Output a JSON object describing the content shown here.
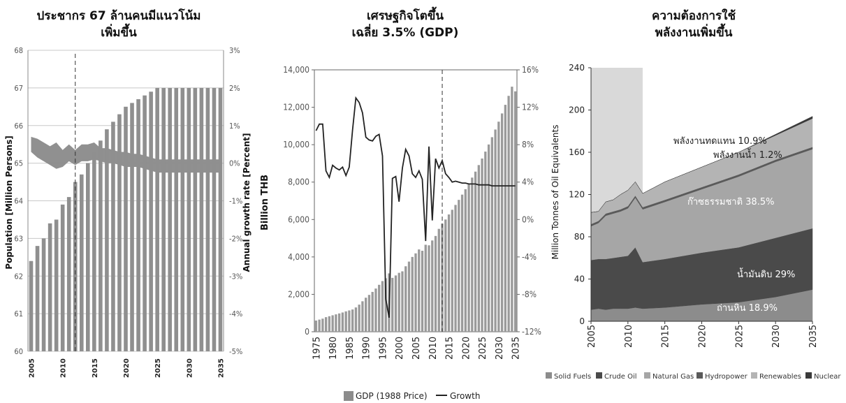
{
  "chart_data": [
    {
      "type": "bar",
      "title_lines": [
        "ประชากร 67 ล้านคนมีแนวโน้ม",
        "เพิ่มขึ้น"
      ],
      "ylabel": "Population [Million Persons]",
      "y2label": "Annual growth rate [Percent]",
      "ylim": [
        60,
        68
      ],
      "y2lim": [
        -5,
        3
      ],
      "yticks": [
        "60",
        "61",
        "62",
        "63",
        "64",
        "65",
        "66",
        "67",
        "68"
      ],
      "y2ticks": [
        "-5%",
        "-4%",
        "-3%",
        "-2%",
        "-1%",
        "0%",
        "1%",
        "2%",
        "3%"
      ],
      "xticks": [
        "2005",
        "2010",
        "2015",
        "2020",
        "2025",
        "2030",
        "2035"
      ],
      "grid": true,
      "projection_start": 2012,
      "series": [
        {
          "type": "bar",
          "x": [
            2005,
            2006,
            2007,
            2008,
            2009,
            2010,
            2011,
            2012,
            2013,
            2014,
            2015,
            2016,
            2017,
            2018,
            2019,
            2020,
            2021,
            2022,
            2023,
            2024,
            2025,
            2026,
            2027,
            2028,
            2029,
            2030,
            2031,
            2032,
            2033,
            2034,
            2035
          ],
          "values": [
            62.4,
            62.8,
            63.0,
            63.4,
            63.5,
            63.9,
            64.1,
            64.5,
            64.7,
            65.0,
            65.3,
            65.6,
            65.9,
            66.1,
            66.3,
            66.5,
            66.6,
            66.7,
            66.8,
            66.9,
            67.0,
            67.0,
            67.0,
            67.0,
            67.0,
            67.0,
            67.0,
            67.0,
            67.0,
            67.0,
            67.0
          ]
        },
        {
          "type": "band",
          "x": [
            2005,
            2006,
            2007,
            2008,
            2009,
            2010,
            2011,
            2012,
            2013,
            2014,
            2015,
            2016,
            2017,
            2018,
            2019,
            2020,
            2021,
            2022,
            2023,
            2024,
            2025,
            2026,
            2027,
            2028,
            2029,
            2030,
            2031,
            2032,
            2033,
            2034,
            2035
          ],
          "upper": [
            0.7,
            0.65,
            0.55,
            0.45,
            0.55,
            0.35,
            0.5,
            0.35,
            0.5,
            0.5,
            0.55,
            0.4,
            0.4,
            0.35,
            0.3,
            0.3,
            0.25,
            0.25,
            0.2,
            0.15,
            0.1,
            0.1,
            0.1,
            0.1,
            0.1,
            0.1,
            0.1,
            0.1,
            0.1,
            0.1,
            0.1
          ],
          "lower": [
            0.3,
            0.15,
            0.05,
            -0.05,
            -0.15,
            -0.1,
            0.05,
            -0.05,
            0.05,
            0.05,
            0.1,
            0.05,
            0.0,
            0.0,
            -0.05,
            -0.1,
            -0.1,
            -0.1,
            -0.15,
            -0.2,
            -0.25,
            -0.25,
            -0.25,
            -0.25,
            -0.25,
            -0.25,
            -0.25,
            -0.25,
            -0.25,
            -0.25,
            -0.25
          ]
        }
      ]
    },
    {
      "type": "bar",
      "title_lines": [
        "เศรษฐกิจโตขึ้น",
        "เฉลี่ย 3.5% (GDP)"
      ],
      "ylabel": "Billion THB",
      "ylim": [
        0,
        14000
      ],
      "y2lim": [
        -12,
        16
      ],
      "yticks": [
        "0",
        "2,000",
        "4,000",
        "6,000",
        "8,000",
        "10,000",
        "12,000",
        "14,000"
      ],
      "y2ticks": [
        "-12%",
        "-8%",
        "-4%",
        "0%",
        "4%",
        "8%",
        "12%",
        "16%"
      ],
      "xticks": [
        "1975",
        "1980",
        "1985",
        "1990",
        "1995",
        "2000",
        "2005",
        "2010",
        "2015",
        "2020",
        "2025",
        "2030",
        "2035"
      ],
      "projection_start": 2013,
      "legend": [
        "GDP (1988 Price)",
        "Growth"
      ],
      "series": [
        {
          "name": "GDP (1988 Price)",
          "type": "bar",
          "x": [
            1975,
            1976,
            1977,
            1978,
            1979,
            1980,
            1981,
            1982,
            1983,
            1984,
            1985,
            1986,
            1987,
            1988,
            1989,
            1990,
            1991,
            1992,
            1993,
            1994,
            1995,
            1996,
            1997,
            1998,
            1999,
            2000,
            2001,
            2002,
            2003,
            2004,
            2005,
            2006,
            2007,
            2008,
            2009,
            2010,
            2011,
            2012,
            2013,
            2014,
            2015,
            2016,
            2017,
            2018,
            2019,
            2020,
            2021,
            2022,
            2023,
            2024,
            2025,
            2026,
            2027,
            2028,
            2029,
            2030,
            2031,
            2032,
            2033,
            2034,
            2035
          ],
          "values": [
            600,
            650,
            700,
            780,
            830,
            880,
            930,
            980,
            1030,
            1090,
            1140,
            1190,
            1300,
            1450,
            1630,
            1820,
            1970,
            2130,
            2310,
            2510,
            2710,
            2860,
            3120,
            2880,
            3010,
            3150,
            3230,
            3500,
            3750,
            4000,
            4190,
            4400,
            4330,
            4650,
            4620,
            4880,
            5120,
            5500,
            5780,
            6000,
            6270,
            6520,
            6780,
            7050,
            7330,
            7620,
            7920,
            8240,
            8560,
            8910,
            9260,
            9630,
            10010,
            10400,
            10810,
            11230,
            11670,
            12130,
            12610,
            13100,
            12850
          ]
        },
        {
          "name": "Growth",
          "type": "line",
          "x": [
            1975,
            1976,
            1977,
            1978,
            1979,
            1980,
            1981,
            1982,
            1983,
            1984,
            1985,
            1986,
            1987,
            1988,
            1989,
            1990,
            1991,
            1992,
            1993,
            1994,
            1995,
            1996,
            1997,
            1998,
            1999,
            2000,
            2001,
            2002,
            2003,
            2004,
            2005,
            2006,
            2007,
            2008,
            2009,
            2010,
            2011,
            2012,
            2013,
            2014,
            2015,
            2016,
            2017,
            2018,
            2019,
            2020,
            2021,
            2022,
            2023,
            2024,
            2025,
            2026,
            2027,
            2028,
            2029,
            2030,
            2031,
            2032,
            2033,
            2034,
            2035
          ],
          "values": [
            9.5,
            10.2,
            10.2,
            5.2,
            4.5,
            5.8,
            5.5,
            5.3,
            5.6,
            4.7,
            5.6,
            9.6,
            13.0,
            12.5,
            11.4,
            8.8,
            8.5,
            8.4,
            8.9,
            9.1,
            6.8,
            -8.5,
            -10.5,
            4.4,
            4.6,
            1.9,
            5.5,
            7.5,
            6.8,
            4.9,
            4.5,
            5.2,
            4.3,
            -2.3,
            7.8,
            -0.1,
            6.5,
            5.5,
            6.3,
            4.9,
            4.5,
            4.0,
            4.1,
            4.0,
            3.9,
            3.9,
            3.8,
            3.8,
            3.8,
            3.7,
            3.7,
            3.7,
            3.7,
            3.6,
            3.6,
            3.6,
            3.6,
            3.6,
            3.6,
            3.6,
            3.6
          ]
        }
      ]
    },
    {
      "type": "area",
      "title_lines": [
        "ความต้องการใช้",
        "พลังงานเพิ่มขึ้น"
      ],
      "ylabel": "Million Tonnes of Oil Equivalents",
      "ylim": [
        0,
        240
      ],
      "yticks": [
        "0",
        "40",
        "80",
        "120",
        "160",
        "200",
        "240"
      ],
      "xticks": [
        "2005",
        "2010",
        "2015",
        "2020",
        "2025",
        "2030",
        "2035"
      ],
      "projection_start": 2012,
      "legend": [
        "Solid Fuels",
        "Crude Oil",
        "Natural Gas",
        "Hydropower",
        "Renewables",
        "Nuclear"
      ],
      "annotations": [
        "พลังงานทดแทน 10.9%",
        "พลังงานน้ำ 1.2%",
        "ก๊าซธรรมชาติ 38.5%",
        "น้ำมันดิบ 29%",
        "ถ่านหิน 18.9%"
      ],
      "x": [
        2005,
        2006,
        2007,
        2008,
        2009,
        2010,
        2011,
        2012,
        2015,
        2020,
        2025,
        2030,
        2035
      ],
      "series": [
        {
          "name": "Solid Fuels",
          "color": "#8c8c8c",
          "values": [
            11,
            12,
            11,
            12,
            12,
            12,
            13,
            12,
            13,
            16,
            18,
            23,
            30
          ]
        },
        {
          "name": "Crude Oil",
          "color": "#4a4a4a",
          "values": [
            47,
            47,
            48,
            48,
            49,
            50,
            57,
            44,
            46,
            49,
            52,
            56,
            58
          ]
        },
        {
          "name": "Natural Gas",
          "color": "#a6a6a6",
          "values": [
            32,
            34,
            41,
            42,
            43,
            45,
            47,
            50,
            54,
            60,
            67,
            72,
            75
          ]
        },
        {
          "name": "Hydropower",
          "color": "#5a5a5a",
          "values": [
            2,
            2,
            2,
            2,
            2,
            2,
            2,
            2,
            2,
            2,
            2,
            2,
            2
          ]
        },
        {
          "name": "Renewables",
          "color": "#b4b4b4",
          "values": [
            11,
            9,
            11,
            11,
            14,
            15,
            13,
            13,
            17,
            19,
            21,
            23,
            27
          ]
        },
        {
          "name": "Nuclear",
          "color": "#3a3a3a",
          "values": [
            0,
            0,
            0,
            0,
            0,
            0,
            0,
            0,
            0,
            0,
            0,
            1,
            2
          ]
        }
      ]
    }
  ]
}
